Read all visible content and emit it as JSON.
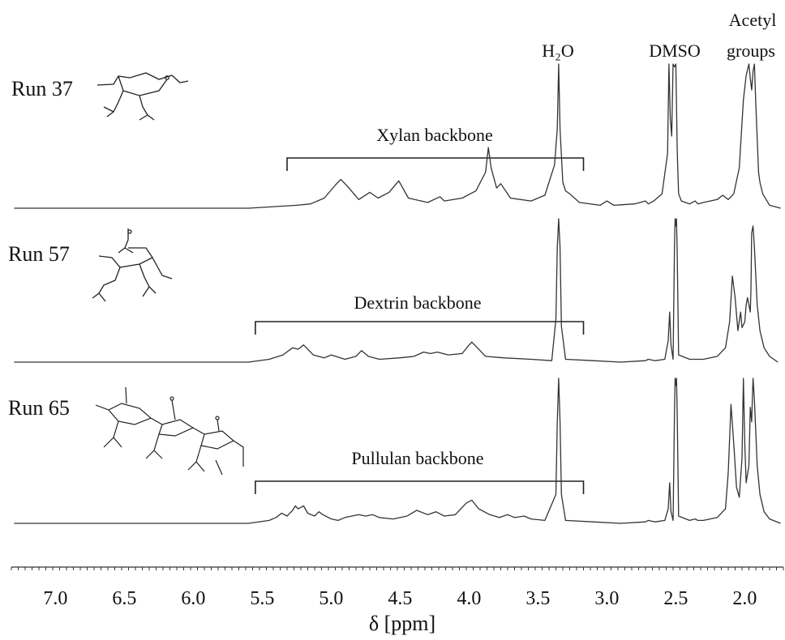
{
  "chart_data": {
    "type": "line",
    "title": "",
    "xlabel": "δ [ppm]",
    "ylabel": "",
    "xlim": [
      7.32,
      1.72
    ],
    "x_reversed": true,
    "x_ticks": [
      7.0,
      6.5,
      6.0,
      5.5,
      5.0,
      4.5,
      4.0,
      3.5,
      3.0,
      2.5,
      2.0
    ],
    "x_tick_labels": [
      "7.0",
      "6.5",
      "6.0",
      "5.5",
      "5.0",
      "4.5",
      "4.0",
      "3.5",
      "3.0",
      "2.5",
      "2.0"
    ],
    "grid": false,
    "legend": "none",
    "peak_labels": [
      {
        "text": "H₂O",
        "x": 3.35
      },
      {
        "text": "DMSO",
        "x": 2.5
      },
      {
        "text": "Acetyl",
        "x": 1.96
      },
      {
        "text": "groups",
        "x": 1.96
      }
    ],
    "series": [
      {
        "name": "Run 37",
        "backbone_label": "Xylan backbone",
        "backbone_range": [
          5.32,
          3.17
        ],
        "baseline": 0.0,
        "x": [
          7.3,
          5.6,
          5.25,
          5.15,
          5.05,
          4.97,
          4.93,
          4.88,
          4.8,
          4.72,
          4.66,
          4.58,
          4.51,
          4.44,
          4.3,
          4.21,
          4.18,
          4.05,
          3.95,
          3.88,
          3.86,
          3.84,
          3.8,
          3.77,
          3.7,
          3.55,
          3.45,
          3.38,
          3.36,
          3.35,
          3.34,
          3.32,
          3.3,
          3.27,
          3.2,
          3.05,
          3.0,
          2.95,
          2.8,
          2.72,
          2.7,
          2.66,
          2.6,
          2.56,
          2.55,
          2.54,
          2.53,
          2.52,
          2.51,
          2.5,
          2.49,
          2.48,
          2.46,
          2.4,
          2.36,
          2.34,
          2.3,
          2.2,
          2.16,
          2.12,
          2.08,
          2.04,
          2.01,
          1.99,
          1.97,
          1.96,
          1.95,
          1.94,
          1.93,
          1.92,
          1.9,
          1.89,
          1.87,
          1.82,
          1.74
        ],
        "y": [
          0.0,
          0.0,
          0.02,
          0.03,
          0.07,
          0.16,
          0.2,
          0.15,
          0.06,
          0.11,
          0.07,
          0.11,
          0.19,
          0.07,
          0.04,
          0.08,
          0.05,
          0.07,
          0.12,
          0.25,
          0.42,
          0.28,
          0.14,
          0.17,
          0.07,
          0.05,
          0.09,
          0.3,
          0.55,
          1.0,
          0.55,
          0.18,
          0.12,
          0.1,
          0.04,
          0.02,
          0.05,
          0.02,
          0.03,
          0.05,
          0.03,
          0.05,
          0.1,
          0.38,
          1.0,
          0.62,
          0.5,
          1.0,
          0.98,
          1.0,
          0.4,
          0.1,
          0.05,
          0.03,
          0.05,
          0.03,
          0.04,
          0.06,
          0.09,
          0.06,
          0.1,
          0.28,
          0.75,
          0.92,
          1.0,
          0.9,
          0.82,
          0.95,
          1.0,
          0.72,
          0.25,
          0.18,
          0.1,
          0.02,
          0.0
        ]
      },
      {
        "name": "Run 57",
        "backbone_label": "Dextrin backbone",
        "backbone_range": [
          5.55,
          3.17
        ],
        "baseline": 0.0,
        "x": [
          7.3,
          5.6,
          5.45,
          5.35,
          5.28,
          5.24,
          5.2,
          5.13,
          5.05,
          5.0,
          4.9,
          4.82,
          4.78,
          4.73,
          4.65,
          4.5,
          4.4,
          4.33,
          4.28,
          4.23,
          4.15,
          4.05,
          4.0,
          3.98,
          3.94,
          3.88,
          3.75,
          3.55,
          3.4,
          3.37,
          3.36,
          3.35,
          3.34,
          3.33,
          3.3,
          3.1,
          2.9,
          2.72,
          2.7,
          2.65,
          2.58,
          2.555,
          2.545,
          2.535,
          2.52,
          2.51,
          2.505,
          2.5,
          2.495,
          2.49,
          2.48,
          2.4,
          2.3,
          2.2,
          2.14,
          2.11,
          2.09,
          2.07,
          2.05,
          2.03,
          2.02,
          2.0,
          1.99,
          1.98,
          1.96,
          1.955,
          1.95,
          1.94,
          1.93,
          1.91,
          1.89,
          1.86,
          1.82,
          1.76
        ],
        "y": [
          0.0,
          0.0,
          0.02,
          0.05,
          0.1,
          0.09,
          0.12,
          0.05,
          0.03,
          0.05,
          0.02,
          0.04,
          0.08,
          0.04,
          0.02,
          0.03,
          0.04,
          0.07,
          0.06,
          0.07,
          0.05,
          0.06,
          0.12,
          0.14,
          0.1,
          0.04,
          0.03,
          0.02,
          0.01,
          0.3,
          0.8,
          1.0,
          0.8,
          0.25,
          0.02,
          0.01,
          0.0,
          0.01,
          0.02,
          0.01,
          0.02,
          0.15,
          0.35,
          0.12,
          0.02,
          0.8,
          1.0,
          0.95,
          1.0,
          0.75,
          0.05,
          0.02,
          0.02,
          0.04,
          0.1,
          0.28,
          0.6,
          0.45,
          0.22,
          0.35,
          0.24,
          0.28,
          0.4,
          0.45,
          0.35,
          0.5,
          0.9,
          0.95,
          0.8,
          0.4,
          0.22,
          0.1,
          0.04,
          0.0
        ]
      },
      {
        "name": "Run 65",
        "backbone_label": "Pullulan backbone",
        "backbone_range": [
          5.55,
          3.17
        ],
        "baseline": 0.0,
        "x": [
          7.3,
          5.6,
          5.45,
          5.4,
          5.36,
          5.32,
          5.28,
          5.26,
          5.24,
          5.22,
          5.2,
          5.17,
          5.12,
          5.09,
          5.06,
          5.0,
          4.95,
          4.9,
          4.85,
          4.8,
          4.75,
          4.7,
          4.65,
          4.55,
          4.45,
          4.38,
          4.3,
          4.24,
          4.18,
          4.1,
          4.02,
          3.98,
          3.93,
          3.85,
          3.78,
          3.72,
          3.67,
          3.6,
          3.55,
          3.45,
          3.37,
          3.36,
          3.35,
          3.34,
          3.33,
          3.3,
          3.1,
          2.9,
          2.72,
          2.7,
          2.65,
          2.58,
          2.555,
          2.545,
          2.535,
          2.52,
          2.51,
          2.505,
          2.5,
          2.495,
          2.49,
          2.48,
          2.4,
          2.36,
          2.34,
          2.3,
          2.2,
          2.14,
          2.12,
          2.1,
          2.08,
          2.06,
          2.04,
          2.02,
          2.01,
          2.0,
          1.99,
          1.97,
          1.96,
          1.95,
          1.945,
          1.94,
          1.93,
          1.91,
          1.89,
          1.86,
          1.82,
          1.74
        ],
        "y": [
          0.0,
          0.0,
          0.02,
          0.04,
          0.07,
          0.05,
          0.09,
          0.12,
          0.1,
          0.11,
          0.12,
          0.07,
          0.05,
          0.08,
          0.06,
          0.03,
          0.02,
          0.04,
          0.05,
          0.06,
          0.05,
          0.06,
          0.04,
          0.03,
          0.05,
          0.09,
          0.06,
          0.08,
          0.05,
          0.06,
          0.14,
          0.16,
          0.1,
          0.06,
          0.04,
          0.06,
          0.04,
          0.05,
          0.03,
          0.02,
          0.2,
          0.7,
          1.0,
          0.7,
          0.2,
          0.02,
          0.01,
          0.0,
          0.01,
          0.02,
          0.01,
          0.02,
          0.1,
          0.28,
          0.08,
          0.02,
          0.75,
          1.0,
          0.95,
          1.0,
          0.75,
          0.05,
          0.02,
          0.03,
          0.02,
          0.02,
          0.04,
          0.1,
          0.35,
          0.82,
          0.55,
          0.25,
          0.18,
          0.45,
          1.0,
          0.55,
          0.28,
          0.4,
          0.8,
          0.7,
          0.85,
          1.0,
          0.85,
          0.4,
          0.2,
          0.08,
          0.03,
          0.0
        ]
      }
    ]
  }
}
